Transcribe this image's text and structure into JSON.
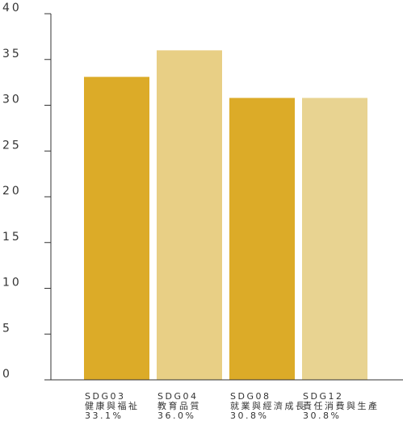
{
  "chart_data": {
    "type": "bar",
    "title": "",
    "xlabel": "",
    "ylabel": "",
    "ylim": [
      0,
      40
    ],
    "yticks": [
      0,
      5,
      10,
      15,
      20,
      25,
      30,
      35,
      40
    ],
    "grid": false,
    "categories": [
      {
        "code": "SDG03",
        "name": "健康與福祉",
        "pct": "33.1%"
      },
      {
        "code": "SDG04",
        "name": "教育品質",
        "pct": "36.0%"
      },
      {
        "code": "SDG08",
        "name": "就業與經濟成長",
        "pct": "30.8%"
      },
      {
        "code": "SDG12",
        "name": "責任消費與生產",
        "pct": "30.8%"
      }
    ],
    "values": [
      33.1,
      36.0,
      30.8,
      30.8
    ],
    "colors": [
      "#dcab28",
      "#e8cf85",
      "#dcab28",
      "#e8d391"
    ]
  }
}
